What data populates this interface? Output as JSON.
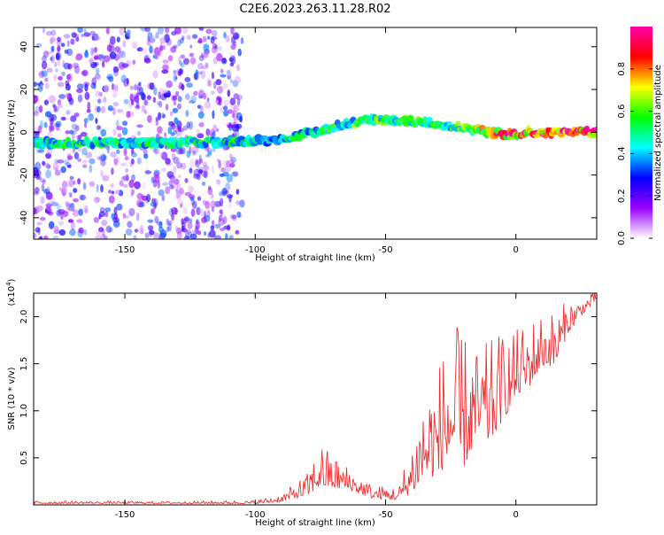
{
  "title": "C2E6.2023.263.11.28.R02",
  "chart_data": [
    {
      "type": "heatmap",
      "title": "C2E6.2023.263.11.28.R02",
      "xlabel": "Height of straight line (km)",
      "ylabel": "Frequency (Hz)",
      "xlim": [
        -185,
        31
      ],
      "ylim": [
        -50,
        49
      ],
      "x_ticks": [
        -150,
        -100,
        -50,
        0
      ],
      "y_ticks": [
        -40,
        -20,
        0,
        20,
        40
      ],
      "colorbar": {
        "label": "Normalized spectral amplitude",
        "range": [
          0,
          1
        ],
        "ticks": [
          0.0,
          0.2,
          0.4,
          0.6,
          0.8
        ],
        "colormap": [
          "#ffffff",
          "#9a00ff",
          "#0000ff",
          "#00ffff",
          "#00ff00",
          "#ffff00",
          "#ff0000",
          "#ff00aa"
        ]
      },
      "ridge": {
        "x": [
          -185,
          -150,
          -120,
          -105,
          -95,
          -85,
          -75,
          -65,
          -55,
          -45,
          -35,
          -25,
          -15,
          -5,
          5,
          15,
          31
        ],
        "frequency": [
          -5,
          -5,
          -5,
          -4,
          -4,
          -2,
          1,
          4,
          6,
          5,
          5,
          3,
          1,
          -1,
          0,
          0,
          0
        ],
        "amplitude": [
          0.5,
          0.5,
          0.5,
          0.5,
          0.45,
          0.5,
          0.5,
          0.55,
          0.6,
          0.55,
          0.6,
          0.55,
          0.7,
          0.85,
          0.95,
          0.95,
          1.0
        ]
      },
      "scatter_region": {
        "x_range": [
          -185,
          -105
        ],
        "frequency_range": [
          -50,
          49
        ],
        "amplitude": 0.2
      }
    },
    {
      "type": "line",
      "xlabel": "Height of straight line (km)",
      "ylabel": "SNR (10 * v/v)",
      "y_multiplier_label": "(x10",
      "y_multiplier_exp": "4",
      "xlim": [
        -185,
        31
      ],
      "ylim": [
        0,
        22500
      ],
      "x_ticks": [
        -150,
        -100,
        -50,
        0
      ],
      "y_ticks": [
        5000,
        10000,
        15000,
        20000
      ],
      "y_tick_labels": [
        "0.5",
        "1.0",
        "1.5",
        "2.0"
      ],
      "color": "#ee3030",
      "envelope": {
        "x": [
          -185,
          -160,
          -130,
          -100,
          -90,
          -80,
          -75,
          -70,
          -65,
          -55,
          -45,
          -40,
          -35,
          -30,
          -25,
          -20,
          -15,
          -10,
          -5,
          0,
          5,
          10,
          15,
          20,
          25,
          31
        ],
        "base": [
          200,
          200,
          200,
          200,
          500,
          1500,
          3000,
          2500,
          2200,
          1000,
          800,
          2500,
          5000,
          5500,
          8000,
          7000,
          9000,
          9000,
          11000,
          13000,
          14000,
          16000,
          16000,
          19000,
          20500,
          22000
        ],
        "spread": [
          300,
          200,
          200,
          300,
          700,
          2000,
          4000,
          3000,
          2200,
          1200,
          1200,
          5000,
          8000,
          10000,
          12000,
          12000,
          8000,
          9000,
          8000,
          6000,
          6000,
          5000,
          5000,
          3000,
          1500,
          800
        ]
      }
    }
  ]
}
